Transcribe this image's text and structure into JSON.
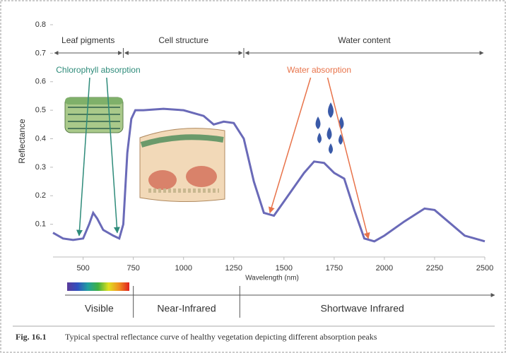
{
  "chart_data": {
    "type": "line",
    "y_label": "Reflectance",
    "x_label": "Wavelength (nm)",
    "x": [
      350,
      400,
      450,
      500,
      530,
      550,
      570,
      600,
      650,
      680,
      700,
      720,
      740,
      760,
      800,
      900,
      1000,
      1100,
      1150,
      1200,
      1250,
      1300,
      1350,
      1400,
      1450,
      1500,
      1600,
      1650,
      1700,
      1750,
      1800,
      1850,
      1900,
      1950,
      2000,
      2100,
      2200,
      2250,
      2300,
      2400,
      2500
    ],
    "series": [
      {
        "color": "#6a6ab8",
        "values": [
          0.07,
          0.05,
          0.045,
          0.05,
          0.1,
          0.14,
          0.12,
          0.08,
          0.06,
          0.05,
          0.1,
          0.35,
          0.47,
          0.5,
          0.5,
          0.505,
          0.5,
          0.48,
          0.45,
          0.46,
          0.455,
          0.4,
          0.25,
          0.14,
          0.13,
          0.18,
          0.28,
          0.32,
          0.315,
          0.28,
          0.26,
          0.15,
          0.05,
          0.04,
          0.06,
          0.11,
          0.155,
          0.15,
          0.12,
          0.06,
          0.04
        ]
      }
    ],
    "xlim": [
      350,
      2500
    ],
    "ylim": [
      0,
      0.8
    ],
    "xticks": [
      500,
      750,
      1000,
      1250,
      1500,
      1750,
      2000,
      2250,
      2500
    ],
    "yticks": [
      0.1,
      0.2,
      0.3,
      0.4,
      0.5,
      0.6,
      0.7,
      0.8
    ],
    "regions": [
      {
        "name": "Leaf pigments",
        "from": 350,
        "to": 700
      },
      {
        "name": "Cell structure",
        "from": 700,
        "to": 1300
      },
      {
        "name": "Water content",
        "from": 1300,
        "to": 2500
      }
    ],
    "annotations": [
      {
        "text": "Chlorophyll absorption",
        "color": "#2e8b7a",
        "targets": [
          [
            480,
            0.06
          ],
          [
            670,
            0.07
          ]
        ]
      },
      {
        "text": "Water absorption",
        "color": "#e8734a",
        "targets": [
          [
            1430,
            0.14
          ],
          [
            1920,
            0.05
          ]
        ]
      }
    ],
    "bands": [
      {
        "name": "Visible",
        "from": 350,
        "to": 750
      },
      {
        "name": "Near-Infrared",
        "from": 750,
        "to": 1280
      },
      {
        "name": "Shortwave Infrared",
        "from": 1280,
        "to": 2500
      }
    ],
    "caption_label": "Fig. 16.1",
    "caption": "Typical spectral reflectance curve of healthy vegetation depicting different absorption peaks"
  }
}
